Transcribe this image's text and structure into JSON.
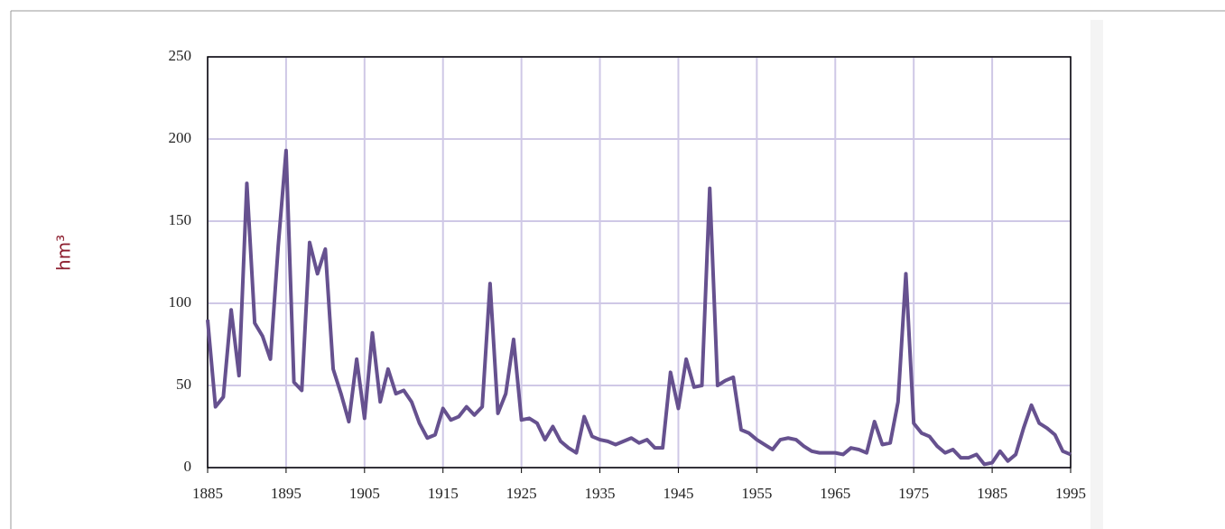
{
  "chart_data": {
    "type": "line",
    "y_label": "hm³",
    "x": [
      1885,
      1886,
      1887,
      1888,
      1889,
      1890,
      1891,
      1892,
      1893,
      1894,
      1895,
      1896,
      1897,
      1898,
      1899,
      1900,
      1901,
      1902,
      1903,
      1904,
      1905,
      1906,
      1907,
      1908,
      1909,
      1910,
      1911,
      1912,
      1913,
      1914,
      1915,
      1916,
      1917,
      1918,
      1919,
      1920,
      1921,
      1922,
      1923,
      1924,
      1925,
      1926,
      1927,
      1928,
      1929,
      1930,
      1931,
      1932,
      1933,
      1934,
      1935,
      1936,
      1937,
      1938,
      1939,
      1940,
      1941,
      1942,
      1943,
      1944,
      1945,
      1946,
      1947,
      1948,
      1949,
      1950,
      1951,
      1952,
      1953,
      1954,
      1955,
      1956,
      1957,
      1958,
      1959,
      1960,
      1961,
      1962,
      1963,
      1964,
      1965,
      1966,
      1967,
      1968,
      1969,
      1970,
      1971,
      1972,
      1973,
      1974,
      1975,
      1976,
      1977,
      1978,
      1979,
      1980,
      1981,
      1982,
      1983,
      1984,
      1985,
      1986,
      1987,
      1988,
      1989,
      1990,
      1991,
      1992,
      1993,
      1994,
      1995
    ],
    "series": [
      {
        "color": "#66518f",
        "values": [
          90,
          37,
          43,
          96,
          56,
          173,
          88,
          80,
          66,
          135,
          193,
          52,
          47,
          137,
          118,
          133,
          60,
          45,
          28,
          66,
          30,
          82,
          40,
          60,
          45,
          47,
          40,
          27,
          18,
          20,
          36,
          29,
          31,
          37,
          32,
          37,
          112,
          33,
          45,
          78,
          29,
          30,
          27,
          17,
          25,
          16,
          12,
          9,
          31,
          19,
          17,
          16,
          14,
          16,
          18,
          15,
          17,
          12,
          12,
          58,
          36,
          66,
          49,
          50,
          170,
          50,
          53,
          55,
          23,
          21,
          17,
          14,
          11,
          17,
          18,
          17,
          13,
          10,
          9,
          9,
          9,
          8,
          12,
          11,
          9,
          28,
          14,
          15,
          40,
          118,
          27,
          21,
          19,
          13,
          9,
          11,
          6,
          6,
          8,
          2,
          3,
          10,
          4,
          8,
          24,
          38,
          27,
          24,
          20,
          10,
          8
        ]
      }
    ],
    "xlim": [
      1885,
      1995
    ],
    "xticks": [
      1885,
      1895,
      1905,
      1915,
      1925,
      1935,
      1945,
      1955,
      1965,
      1975,
      1985,
      1995
    ],
    "ylim": [
      0,
      250
    ],
    "yticks": [
      0,
      50,
      100,
      150,
      200,
      250
    ],
    "grid": true
  }
}
